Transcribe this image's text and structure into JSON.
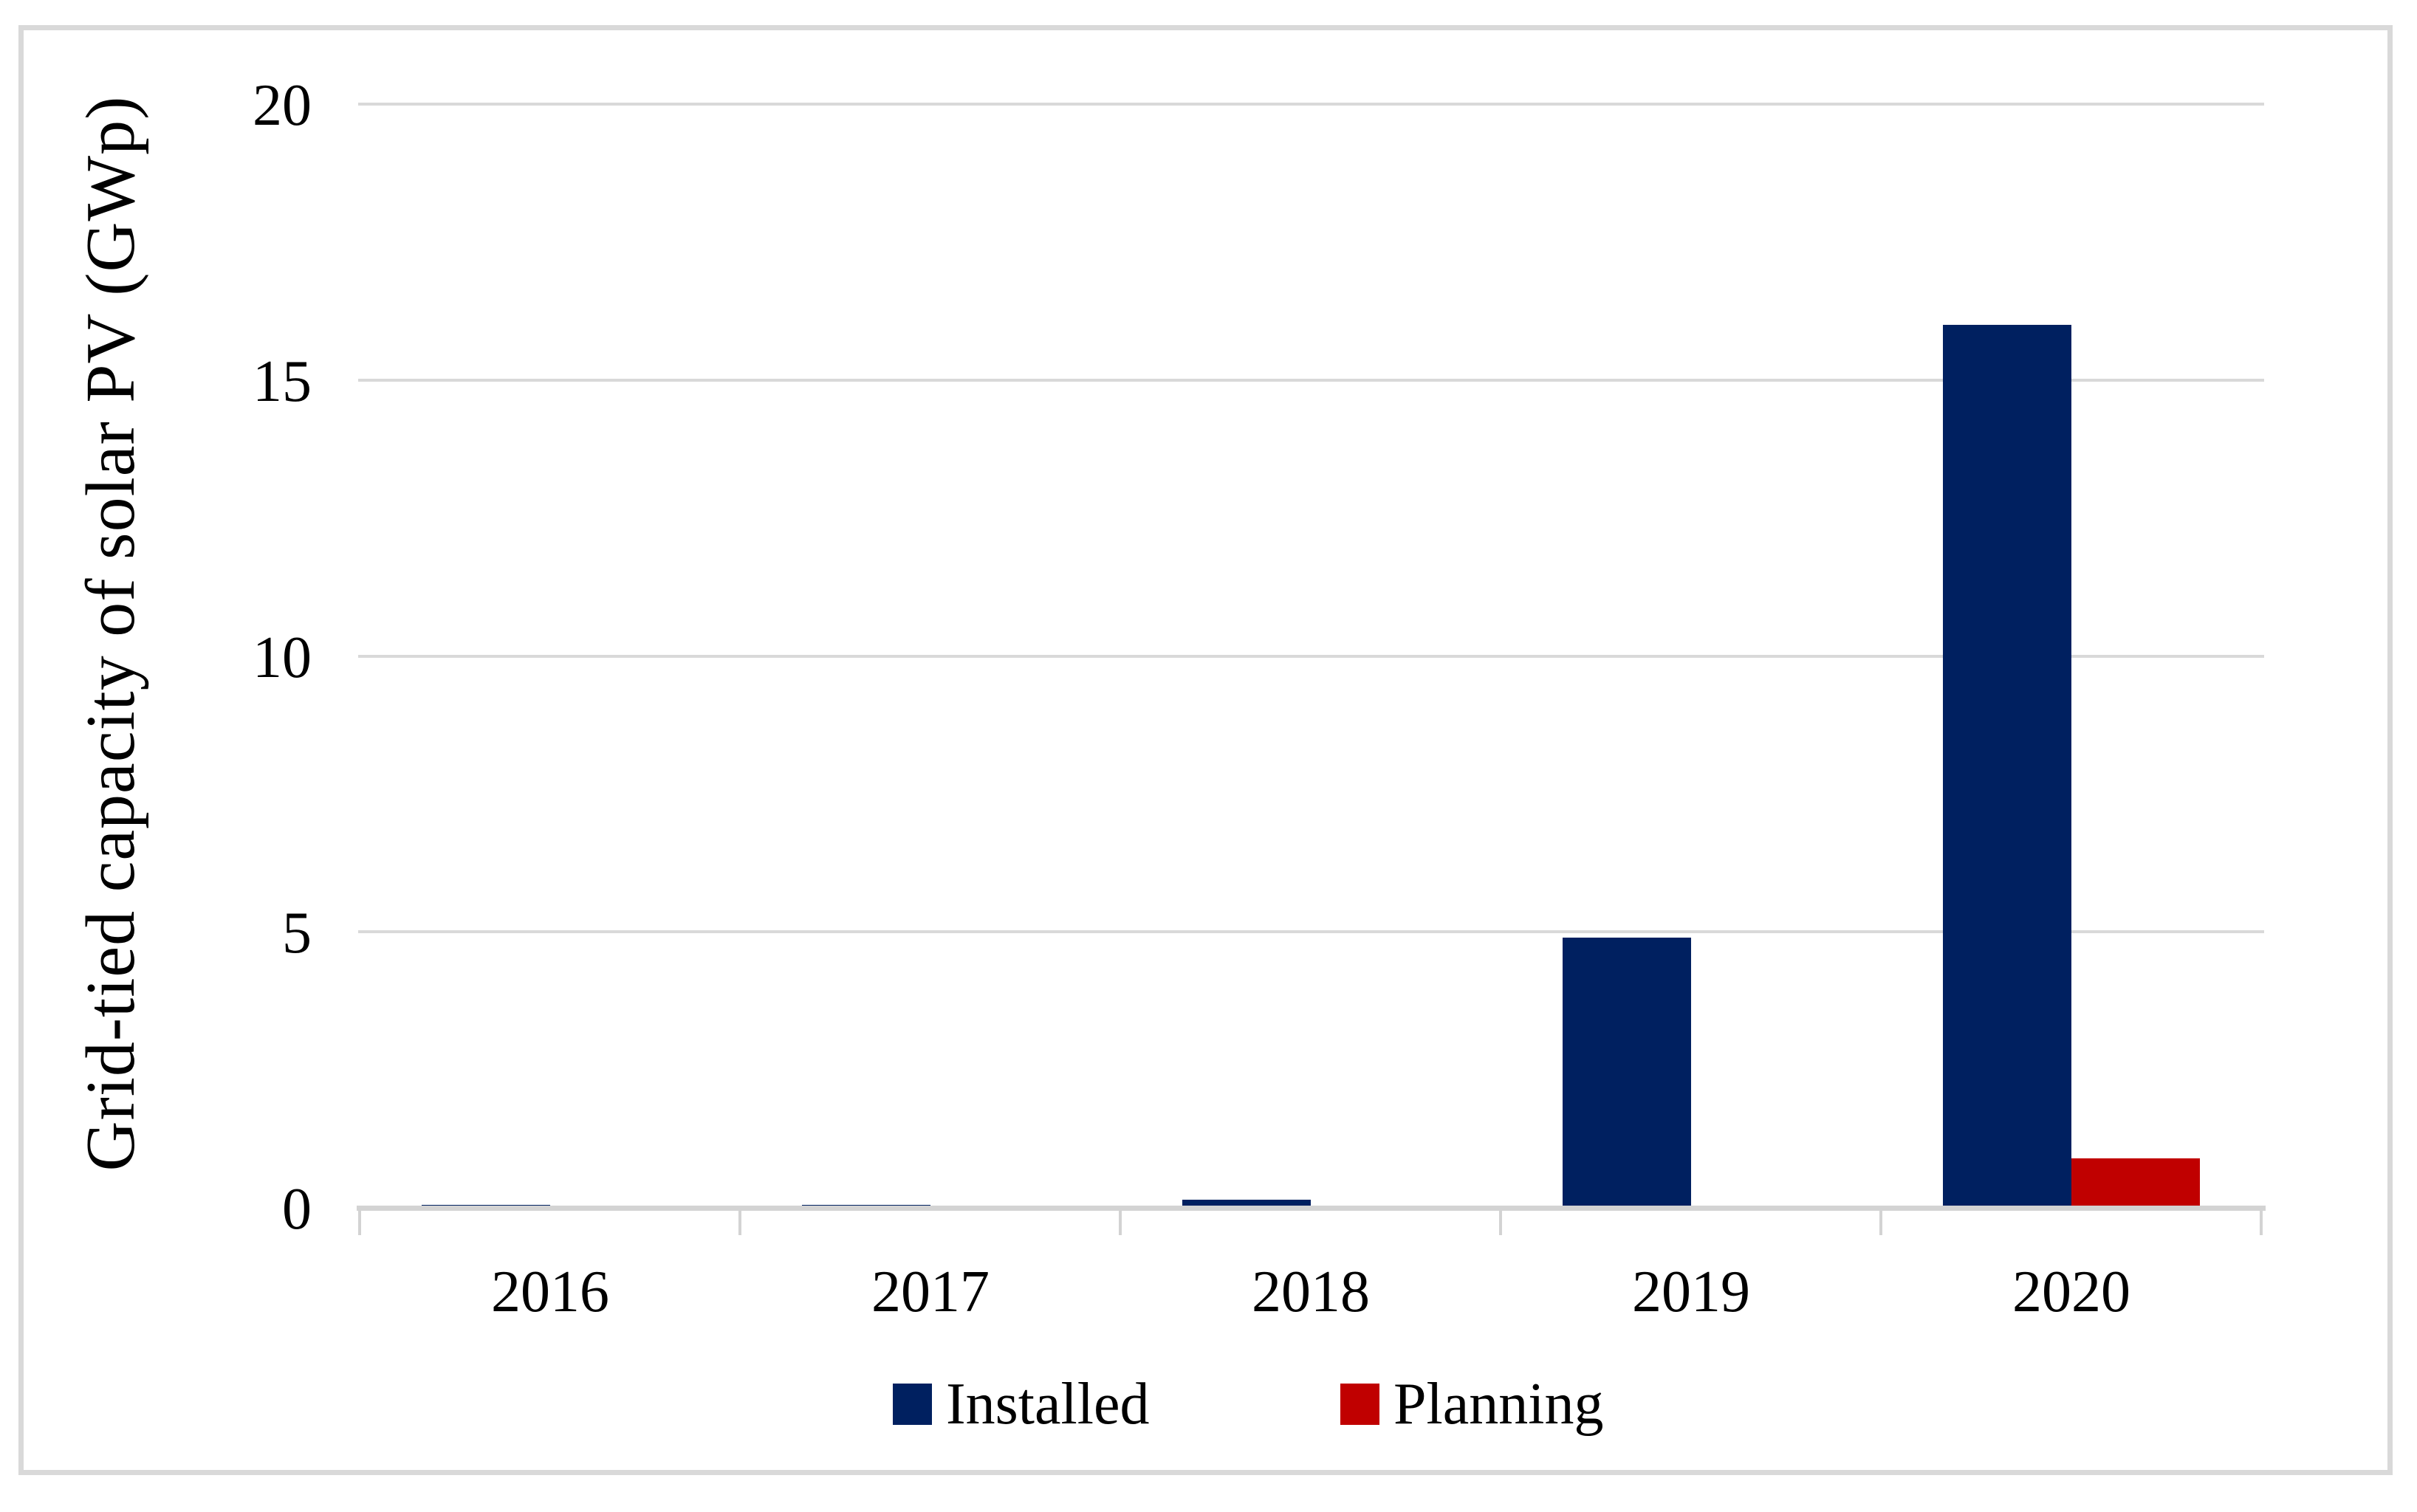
{
  "chart_data": {
    "type": "bar",
    "title": "",
    "xlabel": "",
    "ylabel": "Grid-tied capacity of solar PV (GWp)",
    "categories": [
      "2016",
      "2017",
      "2018",
      "2019",
      "2020"
    ],
    "series": [
      {
        "name": "Installed",
        "color": "#002060",
        "values": [
          0.05,
          0.05,
          0.15,
          4.9,
          16.0
        ]
      },
      {
        "name": "Planning",
        "color": "#C00000",
        "values": [
          0,
          0,
          0,
          0,
          0.9
        ]
      }
    ],
    "ylim": [
      0,
      20
    ],
    "yticks": [
      0,
      5,
      10,
      15,
      20
    ],
    "grid": true,
    "grid_color": "#d9d9d9",
    "frame_color": "#d9d9d9",
    "legend_position": "bottom"
  }
}
